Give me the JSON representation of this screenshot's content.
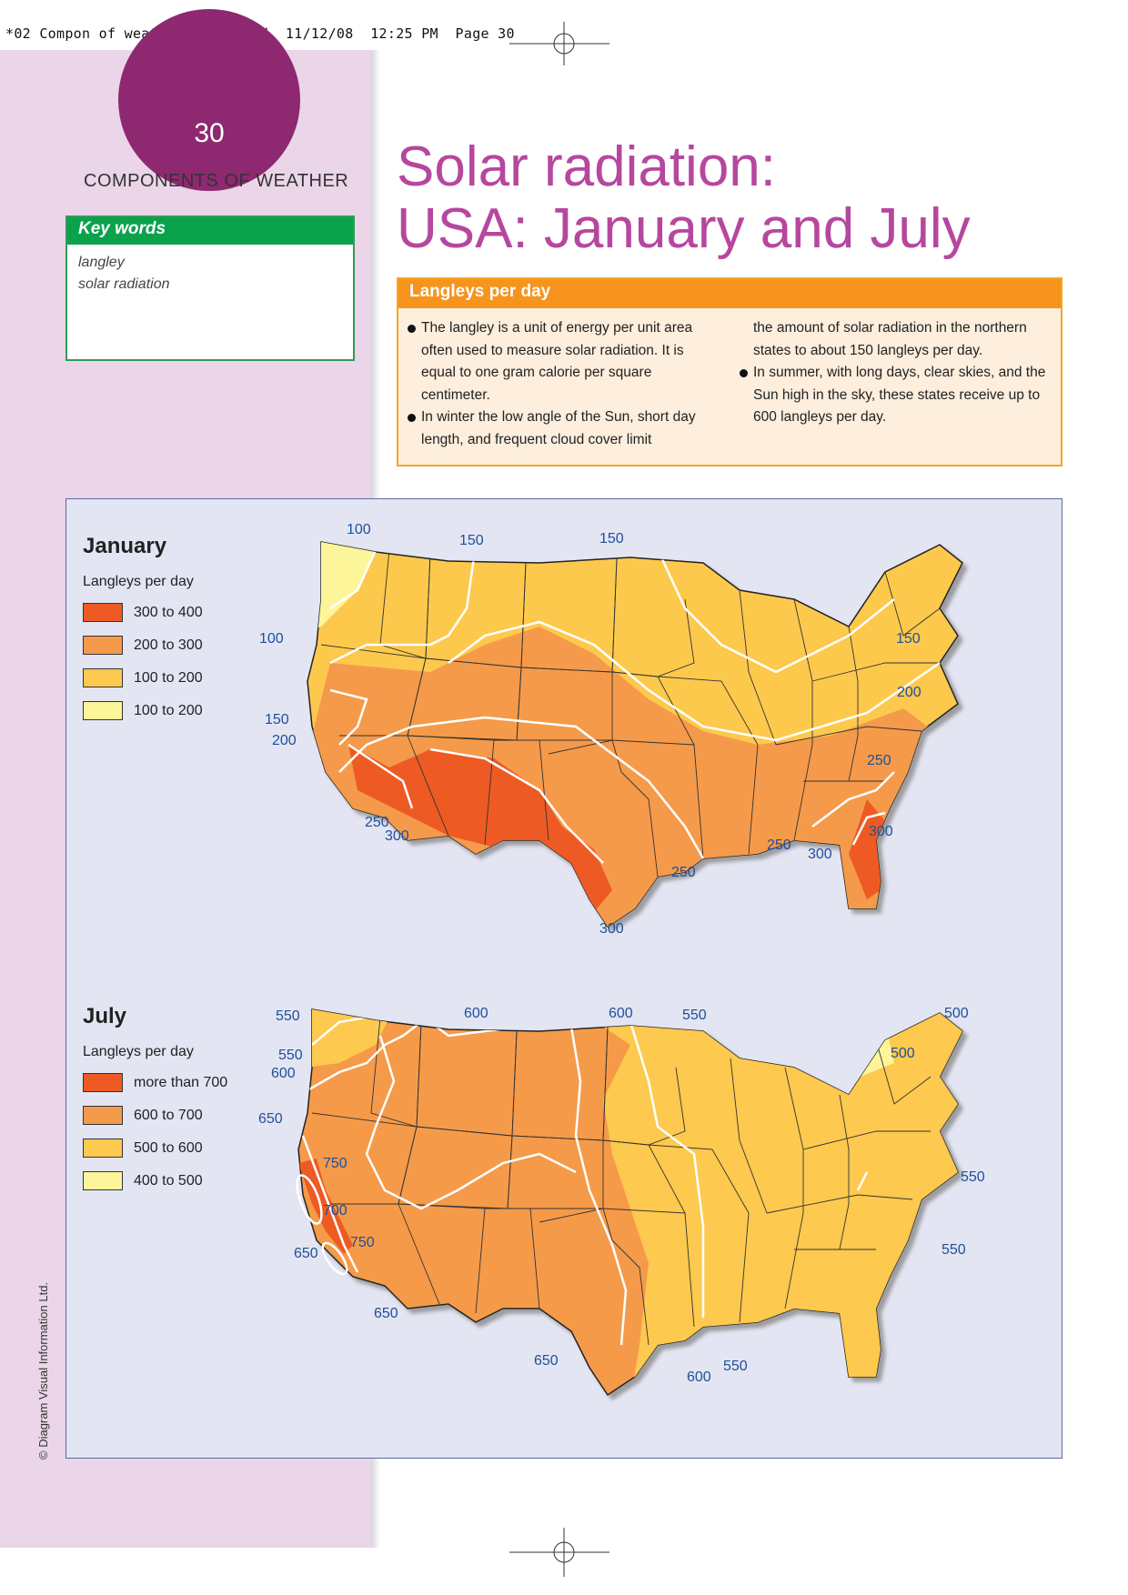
{
  "slug": "*02 Compon of weath (19-53).qxd  11/12/08  12:25 PM  Page 30",
  "page_number": "30",
  "section_title": "COMPONENTS OF WEATHER",
  "keywords": {
    "heading": "Key words",
    "items": [
      "langley",
      "solar radiation"
    ]
  },
  "title": {
    "line1": "Solar radiation:",
    "line2": "USA: January and July"
  },
  "info_box": {
    "heading": "Langleys per day",
    "col1": [
      {
        "bullet": true,
        "text": "The langley is a unit of energy per unit area often used to measure solar radiation. It is equal to one gram calorie per square centimeter."
      },
      {
        "bullet": true,
        "text": "In winter the low angle of the Sun, short day length, and frequent cloud cover limit"
      }
    ],
    "col2": [
      {
        "bullet": false,
        "text": "the amount of solar radiation in the northern states to about 150 langleys per day."
      },
      {
        "bullet": true,
        "text": "In summer, with long days, clear skies, and the Sun high in the sky, these states receive up to 600 langleys per day."
      }
    ]
  },
  "maps": {
    "january": {
      "title": "January",
      "legend_subtitle": "Langleys per day",
      "legend": [
        {
          "label": "300 to 400",
          "color": "#ee5a24"
        },
        {
          "label": "200 to 300",
          "color": "#f59a4a"
        },
        {
          "label": "100 to 200",
          "color": "#fdc94e"
        },
        {
          "label": "100 to 200",
          "color": "#fdf59a"
        }
      ],
      "isolines": [
        "100",
        "150",
        "150",
        "100",
        "150",
        "200",
        "150",
        "200",
        "250",
        "300",
        "250",
        "300",
        "250",
        "300",
        "250",
        "300"
      ]
    },
    "july": {
      "title": "July",
      "legend_subtitle": "Langleys per day",
      "legend": [
        {
          "label": "more than 700",
          "color": "#ee5a24"
        },
        {
          "label": "600 to 700",
          "color": "#f59a4a"
        },
        {
          "label": "500 to 600",
          "color": "#fdc94e"
        },
        {
          "label": "400 to 500",
          "color": "#fdf59a"
        }
      ],
      "isolines": [
        "550",
        "600",
        "600",
        "550",
        "500",
        "550",
        "600",
        "500",
        "650",
        "750",
        "700",
        "750",
        "650",
        "650",
        "550",
        "650",
        "550",
        "600",
        "550"
      ]
    }
  },
  "copyright": "© Diagram Visual Information Ltd."
}
